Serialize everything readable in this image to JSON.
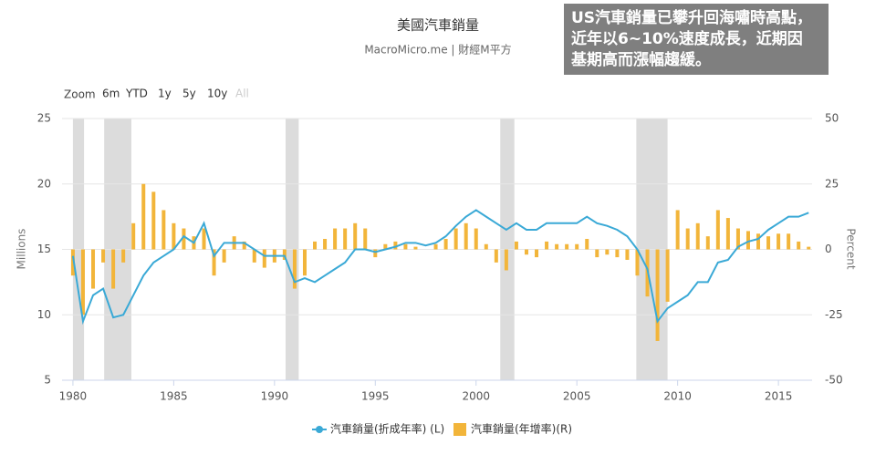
{
  "chart_data": {
    "type": "line-bar",
    "title": "美國汽車銷量",
    "subtitle": "MacroMicro.me | 財經M平方",
    "annotation": [
      "US汽車銷量已攀升回海嘯時高點，",
      "近年以6~10%速度成長，近期因",
      "基期高而漲幅趨緩。"
    ],
    "y_label": "Millions",
    "y2_label": "Percent",
    "xlim": [
      1979.46,
      2016.67
    ],
    "xticks": [
      1980,
      1985,
      1990,
      1995,
      2000,
      2005,
      2010,
      2015
    ],
    "ylim": [
      5,
      25
    ],
    "yticks": [
      5,
      10,
      15,
      20,
      25
    ],
    "y2lim": [
      -50,
      50
    ],
    "y2ticks": [
      -50,
      -25,
      0,
      25,
      50
    ],
    "grid": true,
    "shaded_ranges": [
      [
        1980.0,
        1980.55
      ],
      [
        1981.55,
        1982.9
      ],
      [
        1990.55,
        1991.2
      ],
      [
        2001.2,
        2001.9
      ],
      [
        2007.95,
        2009.5
      ]
    ],
    "shade_color": "#dcdcdc",
    "x": [
      1980.0,
      1980.5,
      1981.0,
      1981.5,
      1982.0,
      1982.5,
      1983.0,
      1983.5,
      1984.0,
      1984.5,
      1985.0,
      1985.5,
      1986.0,
      1986.5,
      1987.0,
      1987.5,
      1988.0,
      1988.5,
      1989.0,
      1989.5,
      1990.0,
      1990.5,
      1991.0,
      1991.5,
      1992.0,
      1992.5,
      1993.0,
      1993.5,
      1994.0,
      1994.5,
      1995.0,
      1995.5,
      1996.0,
      1996.5,
      1997.0,
      1997.5,
      1998.0,
      1998.5,
      1999.0,
      1999.5,
      2000.0,
      2000.5,
      2001.0,
      2001.5,
      2002.0,
      2002.5,
      2003.0,
      2003.5,
      2004.0,
      2004.5,
      2005.0,
      2005.5,
      2006.0,
      2006.5,
      2007.0,
      2007.5,
      2008.0,
      2008.5,
      2009.0,
      2009.5,
      2010.0,
      2010.5,
      2011.0,
      2011.5,
      2012.0,
      2012.5,
      2013.0,
      2013.5,
      2014.0,
      2014.5,
      2015.0,
      2015.5,
      2016.0,
      2016.5
    ],
    "series": [
      {
        "name": "汽車銷量(折成年率) (L)",
        "color": "#3aa9d6",
        "kind": "line",
        "values": [
          14.5,
          9.5,
          11.5,
          12.0,
          9.8,
          10.0,
          11.5,
          13.0,
          14.0,
          14.5,
          15.0,
          16.0,
          15.5,
          17.0,
          14.5,
          15.5,
          15.5,
          15.5,
          15.0,
          14.5,
          14.5,
          14.5,
          12.5,
          12.8,
          12.5,
          13.0,
          13.5,
          14.0,
          15.0,
          15.0,
          14.8,
          15.0,
          15.2,
          15.5,
          15.5,
          15.3,
          15.5,
          16.0,
          16.8,
          17.5,
          18.0,
          17.5,
          17.0,
          16.5,
          17.0,
          16.5,
          16.5,
          17.0,
          17.0,
          17.0,
          17.0,
          17.5,
          17.0,
          16.8,
          16.5,
          16.0,
          15.0,
          13.5,
          9.5,
          10.5,
          11.0,
          11.5,
          12.5,
          12.5,
          14.0,
          14.2,
          15.2,
          15.6,
          15.8,
          16.5,
          17.0,
          17.5,
          17.5,
          17.8
        ]
      },
      {
        "name": "汽車銷量(年增率)(R)",
        "color": "#f2b53a",
        "kind": "bar",
        "axis": "y2",
        "values": [
          -10,
          -25,
          -15,
          -5,
          -15,
          -5,
          10,
          25,
          22,
          15,
          10,
          8,
          5,
          8,
          -10,
          -5,
          5,
          3,
          -5,
          -7,
          -5,
          -4,
          -15,
          -10,
          3,
          4,
          8,
          8,
          10,
          8,
          -3,
          2,
          3,
          2,
          1,
          0,
          2,
          4,
          8,
          10,
          8,
          2,
          -5,
          -8,
          3,
          -2,
          -3,
          3,
          2,
          2,
          2,
          4,
          -3,
          -2,
          -3,
          -4,
          -10,
          -18,
          -35,
          -20,
          15,
          8,
          10,
          5,
          15,
          12,
          8,
          7,
          6,
          5,
          6,
          6,
          3,
          1
        ]
      }
    ]
  },
  "range_selector": {
    "label": "Zoom",
    "buttons": [
      "6m",
      "YTD",
      "1y",
      "5y",
      "10y",
      "All"
    ]
  }
}
